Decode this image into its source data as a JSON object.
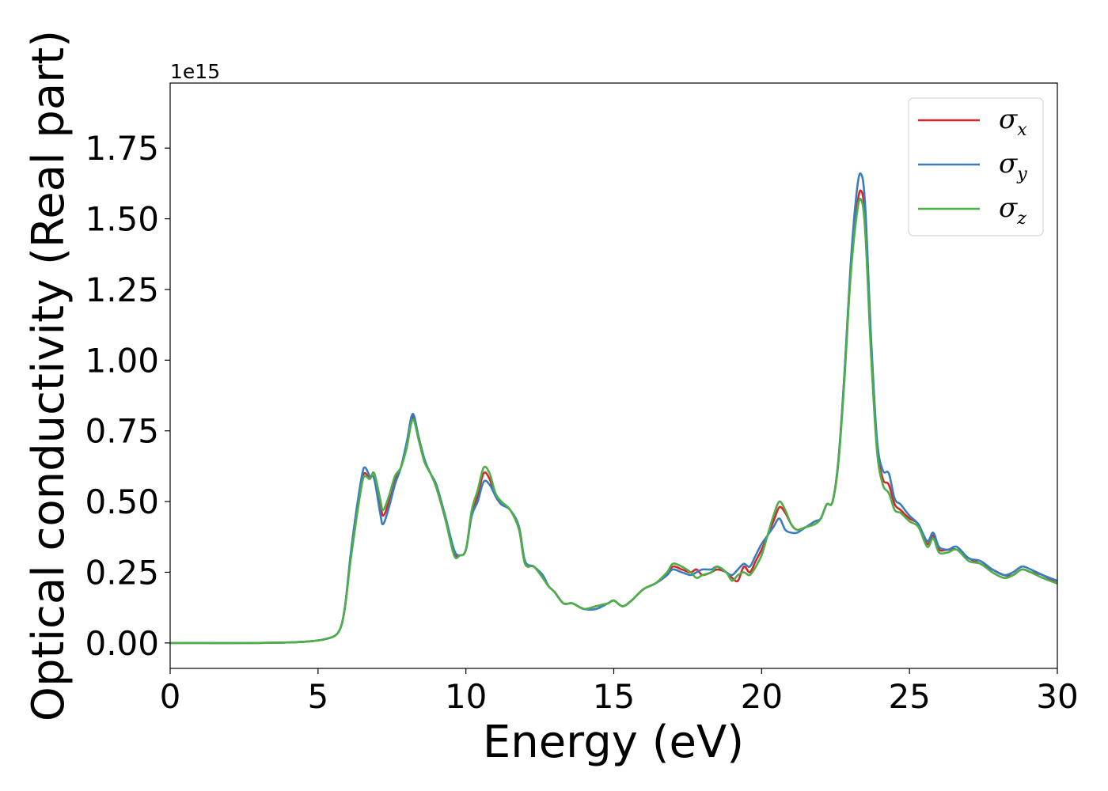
{
  "chart_data": {
    "type": "line",
    "title": "",
    "xlabel": "Energy (eV)",
    "ylabel": "Optical conductivity (Real part)",
    "y_offset_label": "1e15",
    "y_scale_multiplier": 1000000000000000.0,
    "xlim": [
      0,
      30
    ],
    "ylim": [
      -0.09,
      1.98
    ],
    "xticks": [
      0,
      5,
      10,
      15,
      20,
      25,
      30
    ],
    "xtick_labels": [
      "0",
      "5",
      "10",
      "15",
      "20",
      "25",
      "30"
    ],
    "yticks": [
      0.0,
      0.25,
      0.5,
      0.75,
      1.0,
      1.25,
      1.5,
      1.75
    ],
    "ytick_labels": [
      "0.00",
      "0.25",
      "0.50",
      "0.75",
      "1.00",
      "1.25",
      "1.50",
      "1.75"
    ],
    "grid": false,
    "legend_position": "top-right",
    "series": [
      {
        "name": "σx",
        "symbol": "σ",
        "subscript": "x",
        "color": "#d62728",
        "x": [
          0,
          3,
          4.5,
          5.3,
          5.7,
          5.9,
          6.1,
          6.3,
          6.5,
          6.6,
          6.75,
          6.9,
          7.1,
          7.2,
          7.4,
          7.6,
          7.8,
          8.0,
          8.2,
          8.4,
          8.6,
          8.8,
          9.0,
          9.3,
          9.6,
          9.8,
          10.0,
          10.2,
          10.4,
          10.6,
          10.8,
          11.0,
          11.2,
          11.5,
          11.8,
          12.0,
          12.3,
          12.6,
          12.8,
          13.0,
          13.3,
          13.6,
          14.0,
          14.4,
          14.8,
          15.0,
          15.3,
          15.6,
          16.0,
          16.4,
          16.8,
          17.0,
          17.3,
          17.6,
          17.8,
          18.0,
          18.3,
          18.5,
          18.8,
          19.0,
          19.2,
          19.4,
          19.6,
          19.8,
          20.0,
          20.2,
          20.4,
          20.6,
          20.8,
          21.0,
          21.2,
          21.5,
          21.8,
          22.0,
          22.2,
          22.4,
          22.6,
          22.8,
          23.0,
          23.2,
          23.35,
          23.5,
          23.7,
          23.9,
          24.1,
          24.3,
          24.5,
          24.7,
          25.0,
          25.3,
          25.6,
          25.8,
          26.0,
          26.3,
          26.6,
          27.0,
          27.4,
          27.8,
          28.2,
          28.5,
          28.8,
          29.1,
          29.5,
          30.0
        ],
        "y": [
          0.0,
          0.0,
          0.004,
          0.015,
          0.04,
          0.12,
          0.3,
          0.45,
          0.58,
          0.6,
          0.58,
          0.6,
          0.5,
          0.45,
          0.5,
          0.58,
          0.62,
          0.7,
          0.8,
          0.72,
          0.64,
          0.6,
          0.55,
          0.44,
          0.32,
          0.31,
          0.33,
          0.46,
          0.52,
          0.6,
          0.58,
          0.52,
          0.49,
          0.47,
          0.4,
          0.28,
          0.27,
          0.23,
          0.2,
          0.18,
          0.14,
          0.14,
          0.12,
          0.13,
          0.14,
          0.15,
          0.13,
          0.15,
          0.19,
          0.21,
          0.24,
          0.27,
          0.26,
          0.25,
          0.26,
          0.24,
          0.25,
          0.26,
          0.25,
          0.23,
          0.22,
          0.27,
          0.25,
          0.29,
          0.33,
          0.38,
          0.43,
          0.48,
          0.46,
          0.42,
          0.4,
          0.41,
          0.43,
          0.44,
          0.49,
          0.5,
          0.65,
          0.95,
          1.3,
          1.52,
          1.6,
          1.5,
          1.05,
          0.7,
          0.58,
          0.56,
          0.49,
          0.47,
          0.44,
          0.42,
          0.35,
          0.38,
          0.33,
          0.33,
          0.33,
          0.3,
          0.28,
          0.26,
          0.24,
          0.24,
          0.26,
          0.25,
          0.24,
          0.21
        ]
      },
      {
        "name": "σy",
        "symbol": "σ",
        "subscript": "y",
        "color": "#3a7dbe",
        "x": [
          0,
          3,
          4.5,
          5.3,
          5.7,
          5.9,
          6.1,
          6.3,
          6.5,
          6.6,
          6.75,
          6.9,
          7.1,
          7.2,
          7.4,
          7.6,
          7.8,
          8.0,
          8.2,
          8.4,
          8.6,
          8.8,
          9.0,
          9.3,
          9.6,
          9.8,
          10.0,
          10.2,
          10.4,
          10.6,
          10.8,
          11.0,
          11.2,
          11.5,
          11.8,
          12.0,
          12.3,
          12.6,
          12.8,
          13.0,
          13.3,
          13.6,
          14.0,
          14.4,
          14.8,
          15.0,
          15.3,
          15.6,
          16.0,
          16.4,
          16.8,
          17.0,
          17.3,
          17.6,
          17.8,
          18.0,
          18.3,
          18.5,
          18.8,
          19.0,
          19.2,
          19.4,
          19.6,
          19.8,
          20.0,
          20.2,
          20.4,
          20.6,
          20.8,
          21.0,
          21.2,
          21.5,
          21.8,
          22.0,
          22.2,
          22.4,
          22.6,
          22.8,
          23.0,
          23.2,
          23.35,
          23.5,
          23.7,
          23.9,
          24.1,
          24.3,
          24.5,
          24.7,
          25.0,
          25.3,
          25.6,
          25.8,
          26.0,
          26.3,
          26.6,
          27.0,
          27.4,
          27.8,
          28.2,
          28.5,
          28.8,
          29.1,
          29.5,
          30.0
        ],
        "y": [
          0.0,
          0.0,
          0.004,
          0.015,
          0.04,
          0.12,
          0.31,
          0.47,
          0.6,
          0.62,
          0.59,
          0.58,
          0.46,
          0.42,
          0.48,
          0.56,
          0.62,
          0.71,
          0.81,
          0.73,
          0.65,
          0.6,
          0.56,
          0.45,
          0.33,
          0.31,
          0.33,
          0.45,
          0.5,
          0.57,
          0.56,
          0.52,
          0.49,
          0.47,
          0.41,
          0.29,
          0.27,
          0.24,
          0.2,
          0.18,
          0.14,
          0.14,
          0.12,
          0.12,
          0.14,
          0.15,
          0.13,
          0.15,
          0.19,
          0.21,
          0.24,
          0.26,
          0.25,
          0.24,
          0.25,
          0.26,
          0.26,
          0.27,
          0.25,
          0.24,
          0.26,
          0.28,
          0.27,
          0.31,
          0.35,
          0.38,
          0.41,
          0.44,
          0.4,
          0.39,
          0.39,
          0.41,
          0.43,
          0.44,
          0.49,
          0.5,
          0.65,
          0.95,
          1.32,
          1.58,
          1.66,
          1.55,
          1.08,
          0.72,
          0.61,
          0.6,
          0.51,
          0.49,
          0.45,
          0.42,
          0.36,
          0.39,
          0.34,
          0.33,
          0.34,
          0.3,
          0.29,
          0.26,
          0.24,
          0.25,
          0.27,
          0.26,
          0.24,
          0.22
        ]
      },
      {
        "name": "σz",
        "symbol": "σ",
        "subscript": "z",
        "color": "#4daf4a",
        "x": [
          0,
          3,
          4.5,
          5.3,
          5.7,
          5.9,
          6.1,
          6.3,
          6.5,
          6.6,
          6.75,
          6.9,
          7.1,
          7.2,
          7.4,
          7.6,
          7.8,
          8.0,
          8.2,
          8.4,
          8.6,
          8.8,
          9.0,
          9.3,
          9.6,
          9.8,
          10.0,
          10.2,
          10.4,
          10.6,
          10.8,
          11.0,
          11.2,
          11.5,
          11.8,
          12.0,
          12.3,
          12.6,
          12.8,
          13.0,
          13.3,
          13.6,
          14.0,
          14.4,
          14.8,
          15.0,
          15.3,
          15.6,
          16.0,
          16.4,
          16.8,
          17.0,
          17.3,
          17.6,
          17.8,
          18.0,
          18.3,
          18.5,
          18.8,
          19.0,
          19.2,
          19.4,
          19.6,
          19.8,
          20.0,
          20.2,
          20.4,
          20.6,
          20.8,
          21.0,
          21.2,
          21.5,
          21.8,
          22.0,
          22.2,
          22.4,
          22.6,
          22.8,
          23.0,
          23.2,
          23.35,
          23.5,
          23.7,
          23.9,
          24.1,
          24.3,
          24.5,
          24.7,
          25.0,
          25.3,
          25.6,
          25.8,
          26.0,
          26.3,
          26.6,
          27.0,
          27.4,
          27.8,
          28.2,
          28.5,
          28.8,
          29.1,
          29.5,
          30.0
        ],
        "y": [
          0.0,
          0.0,
          0.004,
          0.015,
          0.04,
          0.12,
          0.29,
          0.44,
          0.57,
          0.59,
          0.58,
          0.6,
          0.51,
          0.47,
          0.52,
          0.59,
          0.62,
          0.69,
          0.79,
          0.72,
          0.64,
          0.6,
          0.55,
          0.44,
          0.31,
          0.31,
          0.33,
          0.47,
          0.54,
          0.62,
          0.6,
          0.53,
          0.5,
          0.47,
          0.4,
          0.28,
          0.27,
          0.23,
          0.2,
          0.18,
          0.14,
          0.14,
          0.12,
          0.13,
          0.14,
          0.15,
          0.13,
          0.15,
          0.19,
          0.21,
          0.25,
          0.28,
          0.27,
          0.25,
          0.23,
          0.24,
          0.25,
          0.27,
          0.25,
          0.22,
          0.24,
          0.25,
          0.24,
          0.27,
          0.31,
          0.38,
          0.45,
          0.5,
          0.47,
          0.42,
          0.4,
          0.41,
          0.42,
          0.44,
          0.49,
          0.5,
          0.64,
          0.93,
          1.28,
          1.5,
          1.57,
          1.46,
          1.02,
          0.68,
          0.56,
          0.53,
          0.47,
          0.46,
          0.43,
          0.41,
          0.34,
          0.37,
          0.32,
          0.32,
          0.33,
          0.29,
          0.28,
          0.25,
          0.23,
          0.24,
          0.26,
          0.25,
          0.23,
          0.21
        ]
      }
    ]
  }
}
